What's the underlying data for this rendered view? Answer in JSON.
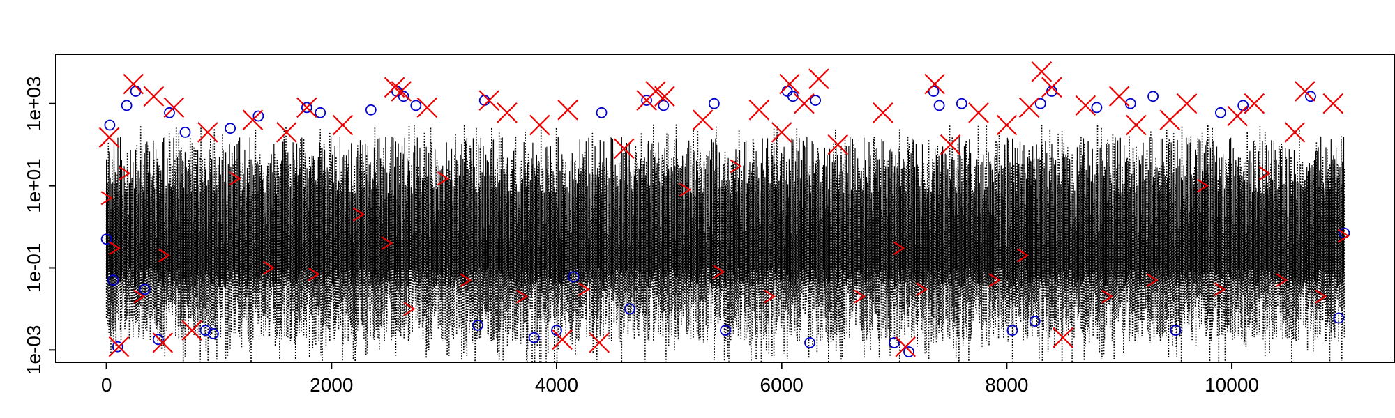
{
  "chart_data": {
    "type": "scatter",
    "title": "",
    "xlabel": "",
    "ylabel": "",
    "xlim": [
      -450,
      11450
    ],
    "ylim_log10": [
      -3.3,
      4.2
    ],
    "y_scale": "log10",
    "grid": false,
    "legend": "none",
    "x_ticks": [
      {
        "value": 0,
        "label": "0"
      },
      {
        "value": 2000,
        "label": "2000"
      },
      {
        "value": 4000,
        "label": "4000"
      },
      {
        "value": 6000,
        "label": "6000"
      },
      {
        "value": 8000,
        "label": "8000"
      },
      {
        "value": 10000,
        "label": "10000"
      }
    ],
    "y_ticks": [
      {
        "value": 0.001,
        "label": "1e-03"
      },
      {
        "value": 0.1,
        "label": "1e-01"
      },
      {
        "value": 10,
        "label": "1e+01"
      },
      {
        "value": 1000,
        "label": "1e+03"
      }
    ],
    "series": [
      {
        "style": "vertical-dotted-lines",
        "color": "#000000",
        "description": "dense black dotted vertical segments across x 0-11000",
        "x_range": [
          0,
          11000
        ],
        "typical_y_range": [
          0.001,
          1000
        ]
      },
      {
        "style": "open-circle",
        "color": "#0000cc",
        "points": [
          [
            0,
            0.5
          ],
          [
            30,
            300
          ],
          [
            60,
            0.05
          ],
          [
            100,
            0.0012
          ],
          [
            180,
            900
          ],
          [
            260,
            2000
          ],
          [
            340,
            0.03
          ],
          [
            460,
            0.0018
          ],
          [
            560,
            600
          ],
          [
            700,
            200
          ],
          [
            880,
            0.003
          ],
          [
            950,
            0.0025
          ],
          [
            1100,
            250
          ],
          [
            1350,
            500
          ],
          [
            1780,
            800
          ],
          [
            1900,
            600
          ],
          [
            2350,
            700
          ],
          [
            2580,
            2000
          ],
          [
            2640,
            1500
          ],
          [
            2750,
            900
          ],
          [
            3300,
            0.004
          ],
          [
            3360,
            1200
          ],
          [
            3800,
            0.002
          ],
          [
            4000,
            0.003
          ],
          [
            4150,
            0.06
          ],
          [
            4400,
            600
          ],
          [
            4650,
            0.01
          ],
          [
            4800,
            1200
          ],
          [
            4950,
            900
          ],
          [
            5400,
            1000
          ],
          [
            5500,
            0.003
          ],
          [
            6050,
            2000
          ],
          [
            6100,
            1500
          ],
          [
            6250,
            0.0015
          ],
          [
            6300,
            1200
          ],
          [
            7000,
            0.0015
          ],
          [
            7130,
            0.0009
          ],
          [
            7350,
            2000
          ],
          [
            7400,
            900
          ],
          [
            7600,
            1000
          ],
          [
            8050,
            0.003
          ],
          [
            8250,
            0.005
          ],
          [
            8300,
            1000
          ],
          [
            8400,
            2000
          ],
          [
            8800,
            800
          ],
          [
            9100,
            1000
          ],
          [
            9300,
            1500
          ],
          [
            9500,
            0.003
          ],
          [
            9900,
            600
          ],
          [
            10100,
            900
          ],
          [
            10700,
            1500
          ],
          [
            10950,
            0.006
          ],
          [
            11000,
            0.7
          ]
        ]
      },
      {
        "style": "red-marker",
        "color": "#ee0000",
        "points": [
          [
            10,
            5
          ],
          [
            25,
            150
          ],
          [
            80,
            0.3
          ],
          [
            110,
            0.0012
          ],
          [
            170,
            20
          ],
          [
            240,
            3000
          ],
          [
            300,
            0.02
          ],
          [
            420,
            1500
          ],
          [
            500,
            0.0015
          ],
          [
            520,
            0.2
          ],
          [
            600,
            800
          ],
          [
            760,
            0.003
          ],
          [
            900,
            200
          ],
          [
            1150,
            15
          ],
          [
            1300,
            400
          ],
          [
            1450,
            0.1
          ],
          [
            1600,
            200
          ],
          [
            1780,
            800
          ],
          [
            1850,
            0.07
          ],
          [
            2100,
            300
          ],
          [
            2250,
            2
          ],
          [
            2500,
            0.4
          ],
          [
            2560,
            2500
          ],
          [
            2620,
            2000
          ],
          [
            2700,
            0.01
          ],
          [
            2850,
            800
          ],
          [
            3000,
            15
          ],
          [
            3200,
            0.05
          ],
          [
            3400,
            1200
          ],
          [
            3560,
            600
          ],
          [
            3700,
            0.02
          ],
          [
            3850,
            300
          ],
          [
            4050,
            0.0018
          ],
          [
            4100,
            700
          ],
          [
            4250,
            0.03
          ],
          [
            4380,
            0.0015
          ],
          [
            4600,
            80
          ],
          [
            4800,
            1200
          ],
          [
            4880,
            2000
          ],
          [
            4960,
            1500
          ],
          [
            5150,
            8
          ],
          [
            5300,
            400
          ],
          [
            5450,
            0.08
          ],
          [
            5600,
            30
          ],
          [
            5800,
            700
          ],
          [
            5900,
            0.02
          ],
          [
            6000,
            200
          ],
          [
            6070,
            3000
          ],
          [
            6200,
            1000
          ],
          [
            6330,
            4000
          ],
          [
            6500,
            100
          ],
          [
            6700,
            0.02
          ],
          [
            6900,
            600
          ],
          [
            7050,
            0.3
          ],
          [
            7100,
            0.0012
          ],
          [
            7250,
            0.03
          ],
          [
            7360,
            3000
          ],
          [
            7500,
            100
          ],
          [
            7750,
            600
          ],
          [
            7900,
            0.05
          ],
          [
            8000,
            300
          ],
          [
            8150,
            0.2
          ],
          [
            8200,
            800
          ],
          [
            8310,
            6000
          ],
          [
            8400,
            2500
          ],
          [
            8500,
            0.002
          ],
          [
            8700,
            900
          ],
          [
            8900,
            0.02
          ],
          [
            9000,
            1500
          ],
          [
            9150,
            300
          ],
          [
            9300,
            0.05
          ],
          [
            9450,
            400
          ],
          [
            9600,
            1000
          ],
          [
            9750,
            10
          ],
          [
            9900,
            0.03
          ],
          [
            10050,
            500
          ],
          [
            10200,
            1000
          ],
          [
            10300,
            20
          ],
          [
            10450,
            0.05
          ],
          [
            10560,
            200
          ],
          [
            10650,
            2000
          ],
          [
            10800,
            0.02
          ],
          [
            10900,
            1000
          ],
          [
            11000,
            0.6
          ]
        ]
      }
    ]
  }
}
